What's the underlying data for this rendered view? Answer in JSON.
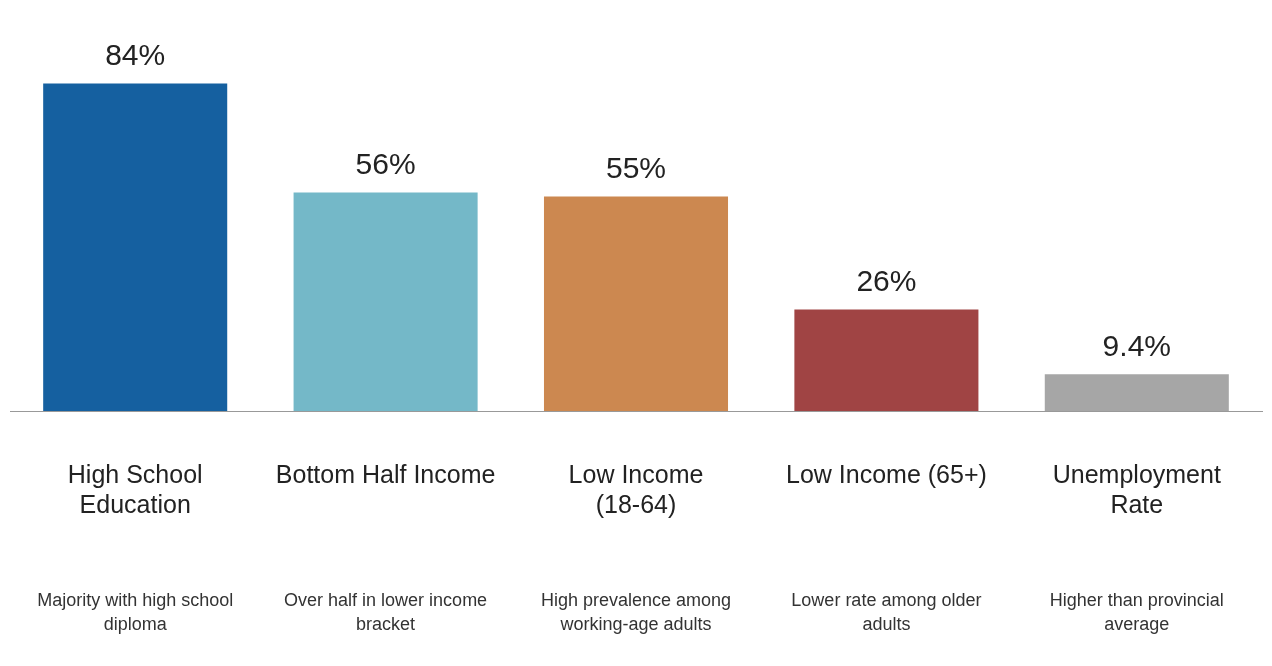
{
  "chart_data": {
    "type": "bar",
    "categories": [
      "High School Education",
      "Bottom Half Income",
      "Low Income (18-64)",
      "Low Income (65+)",
      "Unemployment Rate"
    ],
    "values": [
      84,
      56,
      55,
      26,
      9.4
    ],
    "value_labels": [
      "84%",
      "56%",
      "55%",
      "26%",
      "9.4%"
    ],
    "colors": [
      "#1560a0",
      "#74b8c8",
      "#cc8850",
      "#a04444",
      "#a6a6a6"
    ],
    "annotations": [
      "Majority with high school diploma",
      "Over half in lower income bracket",
      "High prevalence among working-age adults",
      "Lower rate among older adults",
      "Higher than provincial average"
    ],
    "grid": false,
    "legend": false
  }
}
